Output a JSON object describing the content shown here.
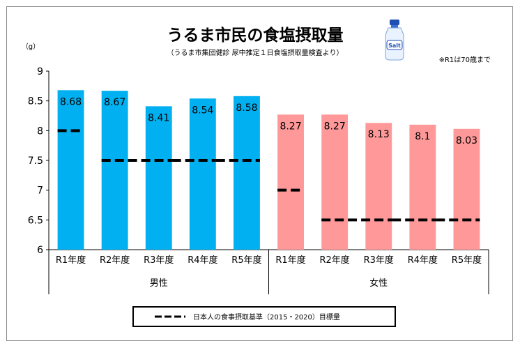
{
  "chart_data": {
    "type": "bar",
    "title": "うるま市民の食塩摂取量",
    "subtitle": "（うるま市集団健診 尿中推定１日食塩摂取量検査より）",
    "note": "※R1は70歳まで",
    "ylabel": "（g）",
    "xlabel": "",
    "ylim": [
      6,
      9
    ],
    "yticks": [
      "6",
      "6.5",
      "7",
      "7.5",
      "8",
      "8.5",
      "9"
    ],
    "grid": false,
    "legend_placement": "bottom",
    "groups": [
      {
        "name": "男性",
        "color": "#00b0f0",
        "categories": [
          "R1年度",
          "R2年度",
          "R3年度",
          "R4年度",
          "R5年度"
        ],
        "values": [
          8.68,
          8.67,
          8.41,
          8.54,
          8.58
        ],
        "labels": [
          "8.68",
          "8.67",
          "8.41",
          "8.54",
          "8.58"
        ],
        "target": [
          8.0,
          7.5,
          7.5,
          7.5,
          7.5
        ]
      },
      {
        "name": "女性",
        "color": "#ff9999",
        "categories": [
          "R1年度",
          "R2年度",
          "R3年度",
          "R4年度",
          "R5年度"
        ],
        "values": [
          8.27,
          8.27,
          8.13,
          8.1,
          8.03
        ],
        "labels": [
          "8.27",
          "8.27",
          "8.13",
          "8.1",
          "8.03"
        ],
        "target": [
          7.0,
          6.5,
          6.5,
          6.5,
          6.5
        ]
      }
    ],
    "legend": {
      "label": "日本人の食事摂取基準（2015・2020）目標量",
      "style": "dashed-black"
    }
  },
  "icon": {
    "name": "salt-shaker-icon",
    "text": "Salt"
  }
}
